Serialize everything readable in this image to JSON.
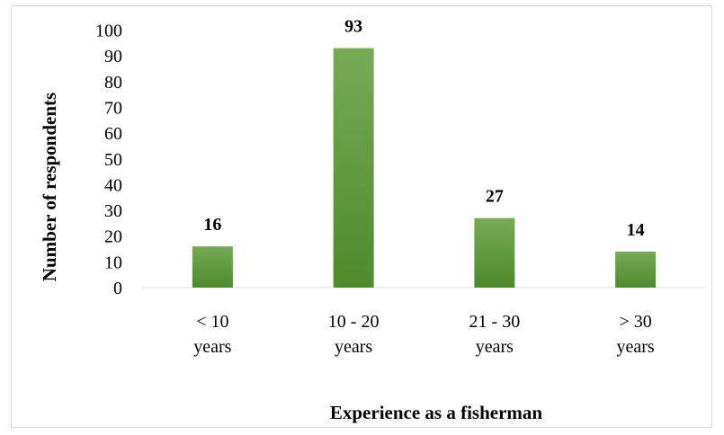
{
  "chart_data": {
    "type": "bar",
    "categories": [
      [
        "< 10",
        "years"
      ],
      [
        "10 - 20",
        "years"
      ],
      [
        "21 - 30",
        "years"
      ],
      [
        "> 30",
        "years"
      ]
    ],
    "values": [
      16,
      93,
      27,
      14
    ],
    "data_labels": [
      "16",
      "93",
      "27",
      "14"
    ],
    "title": "",
    "xlabel": "Experience as a fisherman",
    "ylabel": "Number of respondents",
    "ylim": [
      0,
      100
    ],
    "yticks": [
      0,
      10,
      20,
      30,
      40,
      50,
      60,
      70,
      80,
      90,
      100
    ],
    "grid": false,
    "legend": "none",
    "colors": {
      "bar_top": "#77aa55",
      "bar_bottom": "#4e8a2c",
      "axis": "#d9d9d9"
    }
  }
}
